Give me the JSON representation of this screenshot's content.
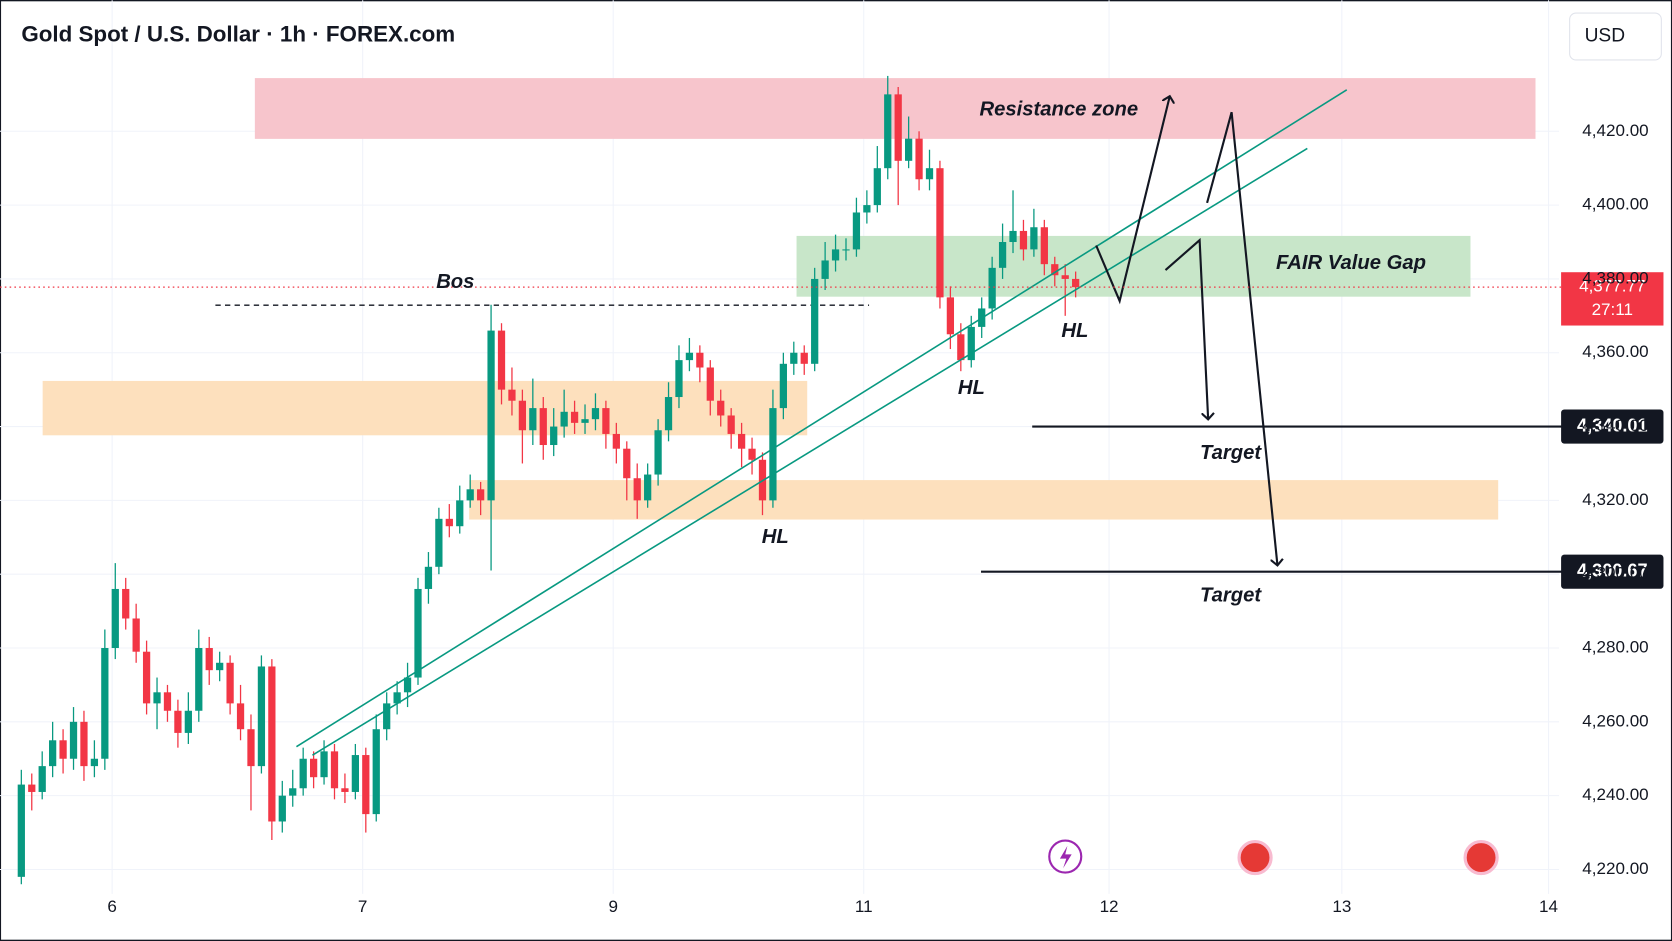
{
  "chart_data": {
    "type": "candlestick",
    "title": "Gold Spot / U.S. Dollar · 1h · FOREX.com",
    "currency": "USD",
    "up_color": "#089981",
    "down_color": "#f23645",
    "xlim": [
      -2.043,
      147.3
    ],
    "ylim": [
      4213.4,
      4455.5
    ],
    "xticks": [
      {
        "value": 8.7,
        "label": "6"
      },
      {
        "value": 32.7,
        "label": "7"
      },
      {
        "value": 56.7,
        "label": "9"
      },
      {
        "value": 80.7,
        "label": "11"
      },
      {
        "value": 104.2,
        "label": "12"
      },
      {
        "value": 126.5,
        "label": "13"
      },
      {
        "value": 146.3,
        "label": "14"
      }
    ],
    "yticks": [
      {
        "value": 4220,
        "label": "4,220.00"
      },
      {
        "value": 4240,
        "label": "4,240.00"
      },
      {
        "value": 4260,
        "label": "4,260.00"
      },
      {
        "value": 4280,
        "label": "4,280.00"
      },
      {
        "value": 4300,
        "label": "4,300.00"
      },
      {
        "value": 4320,
        "label": "4,320.00"
      },
      {
        "value": 4340,
        "label": "4,340.00"
      },
      {
        "value": 4360,
        "label": "4,360.00"
      },
      {
        "value": 4380,
        "label": "4,380.00"
      },
      {
        "value": 4400,
        "label": "4,400.00"
      },
      {
        "value": 4420,
        "label": "4,420.00"
      }
    ],
    "grid": true,
    "open": [
      4218,
      4243,
      4241,
      4248,
      4255,
      4250,
      4260,
      4248,
      4250,
      4280,
      4296,
      4288,
      4279,
      4265,
      4268,
      4263,
      4257,
      4263,
      4280,
      4274,
      4276,
      4265,
      4258,
      4248,
      4275,
      4233,
      4240,
      4242,
      4250,
      4245,
      4252,
      4242,
      4241,
      4251,
      4235,
      4258,
      4265,
      4268,
      4272,
      4296,
      4302,
      4315,
      4313,
      4320,
      4323,
      4320,
      4366,
      4350,
      4347,
      4339,
      4345,
      4335,
      4340,
      4344,
      4341,
      4342,
      4345,
      4338,
      4334,
      4326,
      4320,
      4327,
      4339,
      4348,
      4358,
      4360,
      4356,
      4347,
      4343,
      4338,
      4334,
      4331,
      4320,
      4345,
      4357,
      4360,
      4357,
      4380,
      4385,
      4388,
      4388,
      4398,
      4400,
      4410,
      4430,
      4412,
      4418,
      4407,
      4410,
      4375,
      4365,
      4358,
      4367,
      4372,
      4383,
      4390,
      4393,
      4388,
      4394,
      4384,
      4381,
      4380
    ],
    "high": [
      4247,
      4246,
      4252,
      4260,
      4258,
      4264,
      4263,
      4255,
      4285,
      4303,
      4299,
      4292,
      4282,
      4272,
      4270,
      4266,
      4268,
      4285,
      4283,
      4279,
      4278,
      4270,
      4262,
      4278,
      4277,
      4244,
      4247,
      4253,
      4252,
      4255,
      4254,
      4246,
      4254,
      4253,
      4262,
      4268,
      4271,
      4276,
      4299,
      4306,
      4318,
      4319,
      4324,
      4327,
      4325,
      4373,
      4368,
      4356,
      4350,
      4353,
      4348,
      4345,
      4350,
      4347,
      4346,
      4349,
      4347,
      4341,
      4336,
      4330,
      4330,
      4342,
      4352,
      4362,
      4364,
      4362,
      4358,
      4350,
      4345,
      4341,
      4337,
      4333,
      4350,
      4360,
      4363,
      4362,
      4383,
      4390,
      4392,
      4391,
      4402,
      4404,
      4416,
      4435,
      4432,
      4424,
      4420,
      4415,
      4412,
      4378,
      4368,
      4370,
      4375,
      4386,
      4395,
      4404,
      4396,
      4399,
      4396,
      4386,
      4384,
      4382
    ],
    "low": [
      4216,
      4236,
      4239,
      4245,
      4246,
      4247,
      4244,
      4245,
      4247,
      4277,
      4285,
      4276,
      4262,
      4258,
      4260,
      4253,
      4254,
      4260,
      4270,
      4271,
      4262,
      4255,
      4236,
      4246,
      4228,
      4230,
      4237,
      4240,
      4242,
      4243,
      4239,
      4238,
      4239,
      4230,
      4233,
      4255,
      4262,
      4264,
      4270,
      4292,
      4300,
      4310,
      4311,
      4318,
      4316,
      4301,
      4346,
      4343,
      4330,
      4335,
      4331,
      4332,
      4337,
      4338,
      4338,
      4339,
      4334,
      4330,
      4320,
      4315,
      4318,
      4324,
      4336,
      4345,
      4355,
      4352,
      4343,
      4340,
      4334,
      4329,
      4327,
      4316,
      4318,
      4342,
      4354,
      4354,
      4355,
      4377,
      4382,
      4385,
      4386,
      4395,
      4398,
      4407,
      4400,
      4410,
      4404,
      4404,
      4372,
      4361,
      4355,
      4356,
      4364,
      4369,
      4380,
      4387,
      4385,
      4386,
      4381,
      4378,
      4370,
      4375
    ],
    "close": [
      4243,
      4241,
      4248,
      4255,
      4250,
      4260,
      4248,
      4250,
      4280,
      4296,
      4288,
      4279,
      4265,
      4268,
      4263,
      4257,
      4263,
      4280,
      4274,
      4276,
      4265,
      4258,
      4248,
      4275,
      4233,
      4240,
      4242,
      4250,
      4245,
      4252,
      4242,
      4241,
      4251,
      4235,
      4258,
      4265,
      4268,
      4272,
      4296,
      4302,
      4315,
      4313,
      4320,
      4323,
      4320,
      4366,
      4350,
      4347,
      4339,
      4345,
      4335,
      4340,
      4344,
      4341,
      4342,
      4345,
      4338,
      4334,
      4326,
      4320,
      4327,
      4339,
      4348,
      4358,
      4360,
      4356,
      4347,
      4343,
      4338,
      4334,
      4331,
      4320,
      4345,
      4357,
      4360,
      4357,
      4380,
      4385,
      4388,
      4388,
      4398,
      4400,
      4410,
      4430,
      4412,
      4418,
      4407,
      4410,
      4375,
      4365,
      4358,
      4367,
      4372,
      4383,
      4390,
      4393,
      4388,
      4394,
      4384,
      4381,
      4380,
      4377.77
    ],
    "last_price": {
      "value": 4377.77,
      "label": "4,377.77"
    },
    "countdown": "27:11",
    "levels": [
      {
        "value": 4340.01,
        "label": "4,340.01"
      },
      {
        "value": 4300.67,
        "label": "4,300.67"
      }
    ],
    "annotations": [
      "Resistance zone",
      "FAIR Value Gap",
      "Bos",
      "HL",
      "HL",
      "HL",
      "Target",
      "Target"
    ]
  }
}
